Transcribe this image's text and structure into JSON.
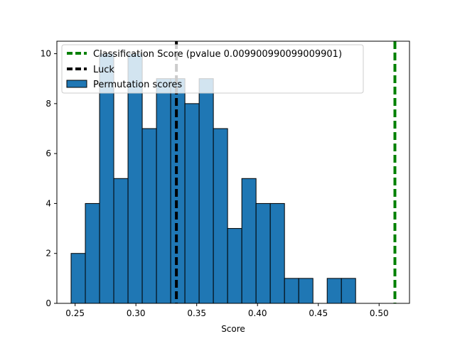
{
  "chart_data": {
    "type": "bar",
    "subtype": "histogram",
    "title": "",
    "xlabel": "Score",
    "ylabel": "",
    "xlim": [
      0.235,
      0.525
    ],
    "ylim": [
      0,
      10.5
    ],
    "x_ticks": [
      0.25,
      0.3,
      0.35,
      0.4,
      0.45,
      0.5
    ],
    "x_tick_labels": [
      "0.25",
      "0.30",
      "0.35",
      "0.40",
      "0.45",
      "0.50"
    ],
    "y_ticks": [
      0,
      2,
      4,
      6,
      8,
      10
    ],
    "y_tick_labels": [
      "0",
      "2",
      "4",
      "6",
      "8",
      "10"
    ],
    "grid": false,
    "legend_position": "top-left",
    "series": [
      {
        "name": "Permutation scores",
        "type": "histogram",
        "color": "#1f77b4",
        "edgecolor": "#000000",
        "bin_edges": [
          0.2467,
          0.2584,
          0.2701,
          0.2818,
          0.2935,
          0.3052,
          0.3169,
          0.3286,
          0.3403,
          0.352,
          0.3637,
          0.3754,
          0.3871,
          0.3988,
          0.4105,
          0.4222,
          0.4339,
          0.4456,
          0.4573,
          0.469,
          0.4807
        ],
        "counts": [
          2,
          4,
          10,
          5,
          10,
          7,
          9,
          9,
          8,
          9,
          7,
          3,
          5,
          4,
          4,
          1,
          1,
          0,
          1,
          1
        ]
      },
      {
        "name": "Classification Score (pvalue 0.009900990099009901)",
        "type": "vline",
        "x": 0.513,
        "color": "#008000",
        "style": "dashed"
      },
      {
        "name": "Luck",
        "type": "vline",
        "x": 0.3333,
        "color": "#000000",
        "style": "dashed"
      }
    ],
    "legend": [
      {
        "label": "Classification Score (pvalue 0.009900990099009901)",
        "color": "#008000",
        "kind": "dashed-line"
      },
      {
        "label": "Luck",
        "color": "#000000",
        "kind": "dashed-line"
      },
      {
        "label": "Permutation scores",
        "color": "#1f77b4",
        "kind": "patch"
      }
    ]
  }
}
